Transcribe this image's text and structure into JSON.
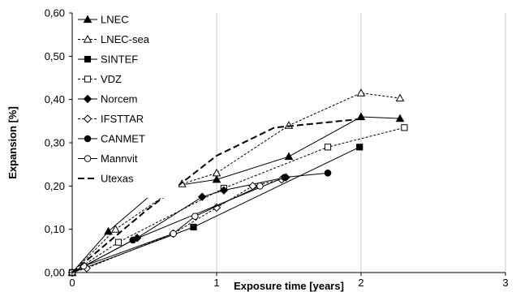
{
  "chart_data": {
    "type": "line",
    "title": "",
    "xlabel": "Exposure time [years]",
    "ylabel": "Expansion [%]",
    "xlim": [
      0,
      3
    ],
    "ylim": [
      0,
      0.6
    ],
    "x_ticks": [
      "0",
      "1",
      "2",
      "3"
    ],
    "y_ticks": [
      "0,00",
      "0,10",
      "0,20",
      "0,30",
      "0,40",
      "0,50",
      "0,60"
    ],
    "grid": "vertical",
    "legend_position": "top-left",
    "series": [
      {
        "name": "LNEC",
        "marker": "triangle-filled",
        "line": "solid",
        "x": [
          0,
          0.25,
          0.6,
          1.0,
          1.5,
          2.0,
          2.27
        ],
        "y": [
          0.0,
          0.095,
          0.195,
          0.215,
          0.268,
          0.36,
          0.356
        ]
      },
      {
        "name": "LNEC-sea",
        "marker": "triangle-open",
        "line": "dashed",
        "x": [
          0,
          0.3,
          0.76,
          1.0,
          1.5,
          2.0,
          2.27
        ],
        "y": [
          0.0,
          0.1,
          0.205,
          0.23,
          0.34,
          0.415,
          0.403
        ]
      },
      {
        "name": "SINTEF",
        "marker": "square-filled",
        "line": "solid",
        "x": [
          0,
          0.84,
          1.99
        ],
        "y": [
          0.0,
          0.105,
          0.29
        ]
      },
      {
        "name": "VDZ",
        "marker": "square-open",
        "line": "dashed",
        "x": [
          0,
          0.32,
          1.05,
          1.77,
          2.3
        ],
        "y": [
          0.0,
          0.07,
          0.195,
          0.29,
          0.335
        ]
      },
      {
        "name": "Norcem",
        "marker": "diamond-filled",
        "line": "solid",
        "x": [
          0,
          0.45,
          0.9,
          1.05,
          1.48
        ],
        "y": [
          0.0,
          0.08,
          0.175,
          0.19,
          0.22
        ]
      },
      {
        "name": "IFSTTAR",
        "marker": "diamond-open",
        "line": "dashed",
        "x": [
          0,
          0.1,
          0.7,
          1.0,
          1.25,
          1.45
        ],
        "y": [
          0.0,
          0.01,
          0.09,
          0.15,
          0.2,
          0.215
        ]
      },
      {
        "name": "CANMET",
        "marker": "circle-filled",
        "line": "solid",
        "x": [
          0,
          0.42,
          1.47,
          1.77
        ],
        "y": [
          0.0,
          0.075,
          0.22,
          0.23
        ]
      },
      {
        "name": "Mannvit",
        "marker": "circle-open",
        "line": "solid",
        "x": [
          0,
          0.08,
          0.7,
          0.85,
          1.3
        ],
        "y": [
          0.0,
          0.015,
          0.09,
          0.13,
          0.2
        ]
      },
      {
        "name": "Utexas",
        "marker": "none",
        "line": "long-dash",
        "x": [
          0,
          0.5,
          1.0,
          1.4,
          2.0
        ],
        "y": [
          0.0,
          0.14,
          0.27,
          0.335,
          0.355
        ]
      }
    ]
  }
}
